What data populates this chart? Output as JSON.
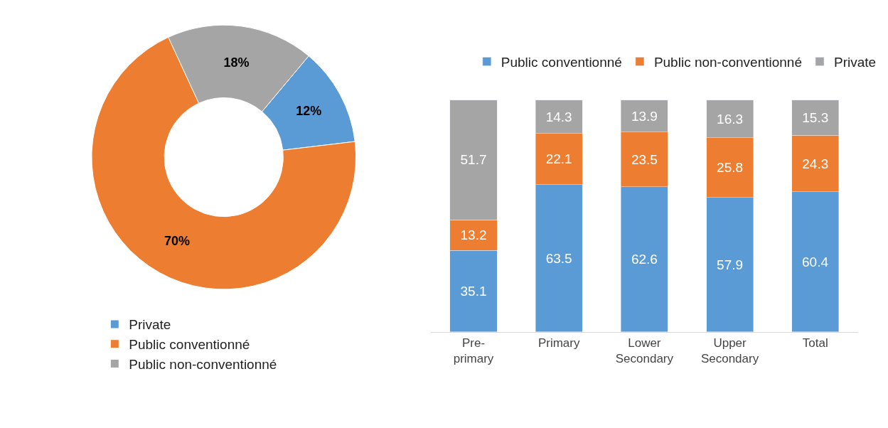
{
  "chart_data": [
    {
      "type": "donut",
      "categories": [
        "Private",
        "Public conventionné",
        "Public non-conventionné"
      ],
      "values": [
        12,
        70,
        18
      ],
      "colors": [
        "#5b9bd5",
        "#ed7d31",
        "#a5a5a5"
      ],
      "value_labels": [
        "12%",
        "70%",
        "18%"
      ],
      "legend": "bottom left"
    },
    {
      "type": "bar",
      "stacked": true,
      "categories": [
        "Pre-primary",
        "Primary",
        "Lower Secondary",
        "Upper Secondary",
        "Total"
      ],
      "series": [
        {
          "name": "Public conventionné",
          "color": "#5b9bd5",
          "values": [
            35.1,
            63.5,
            62.6,
            57.9,
            60.4
          ]
        },
        {
          "name": "Public non-conventionné",
          "color": "#ed7d31",
          "values": [
            13.2,
            22.1,
            23.5,
            25.8,
            24.3
          ]
        },
        {
          "name": "Private",
          "color": "#a5a5a5",
          "values": [
            51.7,
            14.3,
            13.9,
            16.3,
            15.3
          ]
        }
      ],
      "data_labels": true,
      "legend": "top"
    }
  ]
}
